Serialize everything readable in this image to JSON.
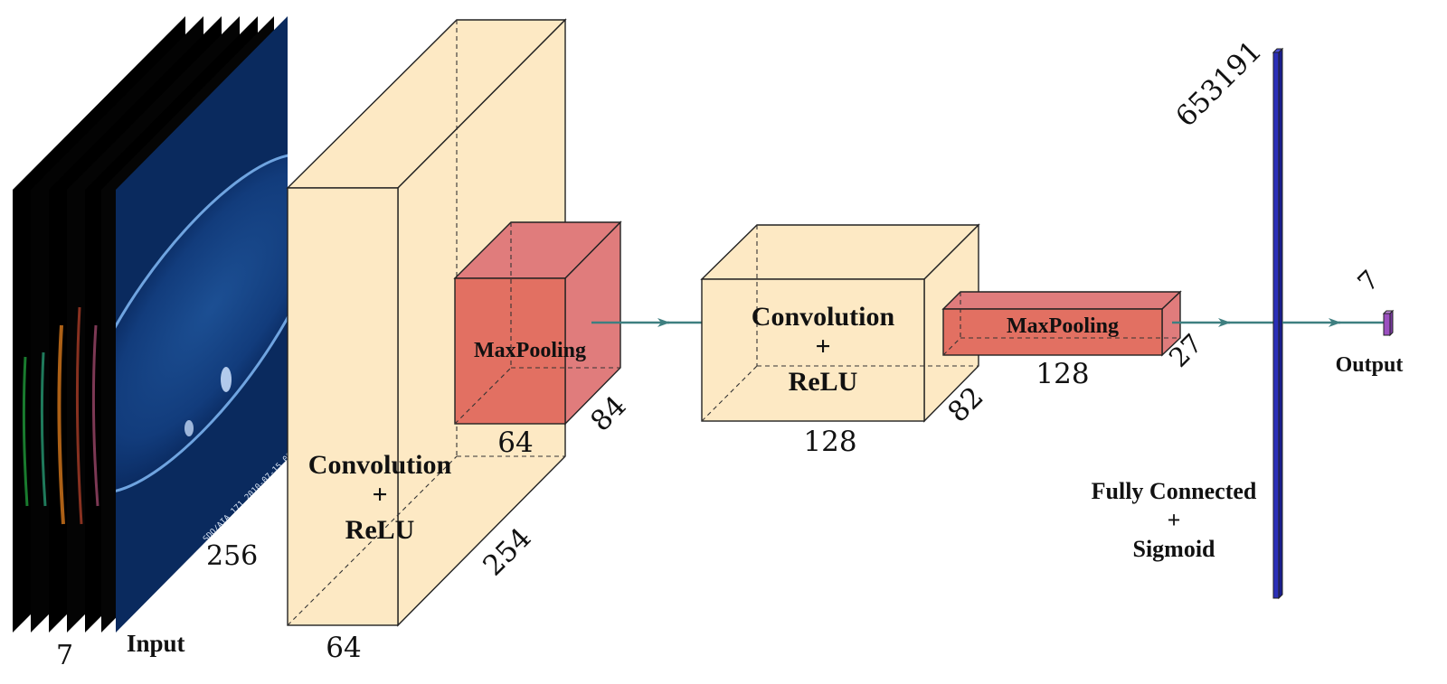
{
  "colors": {
    "conv_block": "#fde9c4",
    "pool_block": "#e27062",
    "pool_block_side": "#e07c7c",
    "fc_layer": "#2b2fb8",
    "arrow": "#3e7f80",
    "output": "#9b4fc0",
    "sun_disk": "#0b2b66"
  },
  "input": {
    "label": "Input",
    "width_dim": "256",
    "channels_dim": "7",
    "image_caption": "SDO/AIA 171 2010-07-15 00:00:00"
  },
  "conv1": {
    "label_line1": "Convolution",
    "label_line2": "+",
    "label_line3": "ReLU",
    "width_dim": "64",
    "depth_dim": "254"
  },
  "pool1": {
    "label": "MaxPooling",
    "width_dim": "64",
    "depth_dim": "84"
  },
  "conv2": {
    "label_line1": "Convolution",
    "label_line2": "+",
    "label_line3": "ReLU",
    "width_dim": "128",
    "depth_dim": "82"
  },
  "pool2": {
    "label": "MaxPooling",
    "width_dim": "128",
    "depth_dim": "27"
  },
  "fc": {
    "label_line1": "Fully Connected",
    "label_line2": "+",
    "label_line3": "Sigmoid",
    "size_dim": "653191"
  },
  "output": {
    "label": "Output",
    "size_dim": "7"
  }
}
